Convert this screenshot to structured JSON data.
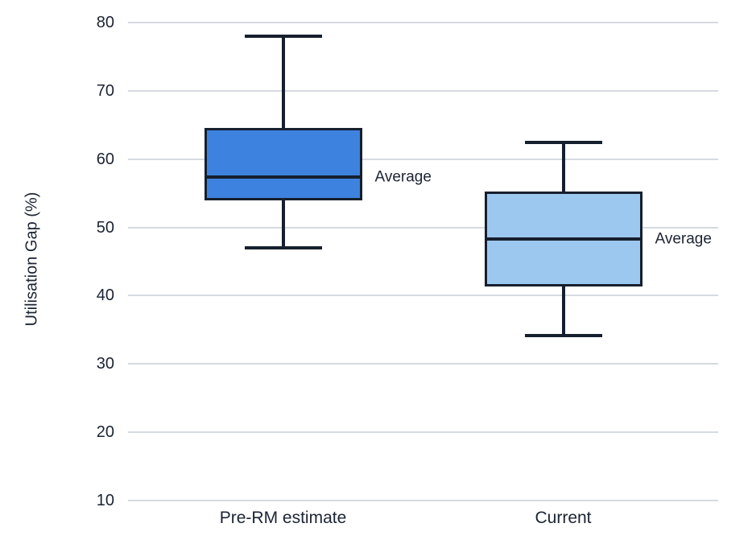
{
  "chart_data": {
    "type": "boxplot",
    "title": "",
    "xlabel": "",
    "ylabel": "Utilisation Gap (%)",
    "ylim": [
      10,
      80
    ],
    "yticks": [
      80,
      70,
      60,
      50,
      40,
      30,
      20,
      10
    ],
    "grid": "horizontal",
    "legend": "none",
    "categories": [
      "Pre-RM estimate",
      "Current"
    ],
    "series": [
      {
        "name": "Pre-RM estimate",
        "min": 47,
        "q1": 54,
        "average": 57.4,
        "q3": 64.6,
        "max": 78,
        "annotation": "Average",
        "fill": "#3d82de"
      },
      {
        "name": "Current",
        "min": 34.2,
        "q1": 41.4,
        "average": 48.3,
        "q3": 55.3,
        "max": 62.4,
        "annotation": "Average",
        "fill": "#9cc8f0"
      }
    ],
    "colors": {
      "stroke": "#161f2d",
      "text": "#1b2433",
      "gridline": "#d6dae1",
      "background": "#ffffff"
    }
  }
}
